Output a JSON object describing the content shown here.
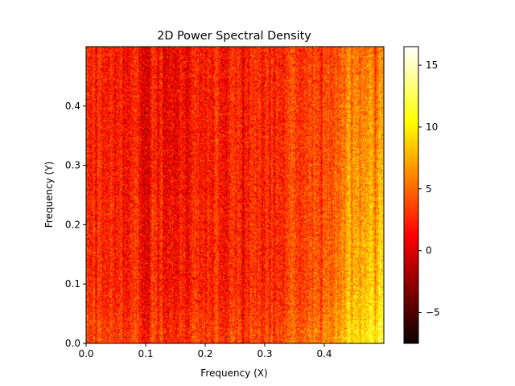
{
  "chart_data": {
    "type": "heatmap",
    "title": "2D Power Spectral Density",
    "xlabel": "Frequency (X)",
    "ylabel": "Frequency (Y)",
    "xlim": [
      0.0,
      0.5
    ],
    "ylim": [
      0.0,
      0.5
    ],
    "x_ticks": [
      0.0,
      0.1,
      0.2,
      0.3,
      0.4
    ],
    "x_tick_labels": [
      "0.0",
      "0.1",
      "0.2",
      "0.3",
      "0.4"
    ],
    "y_ticks": [
      0.0,
      0.1,
      0.2,
      0.3,
      0.4
    ],
    "y_tick_labels": [
      "0.0",
      "0.1",
      "0.2",
      "0.3",
      "0.4"
    ],
    "colormap": "hot",
    "colorbar": {
      "vmin": -7.5,
      "vmax": 16.5,
      "ticks": [
        -5,
        0,
        5,
        10,
        15
      ],
      "tick_labels": [
        "−5",
        "0",
        "5",
        "10",
        "15"
      ]
    },
    "grid": false,
    "description_of_values": "Noisy field, roughly 2 to 5 over most of the plane, rising toward 9 to 12 at high Frequency (X) (above about 0.4), highest near low Frequency (Y)."
  }
}
